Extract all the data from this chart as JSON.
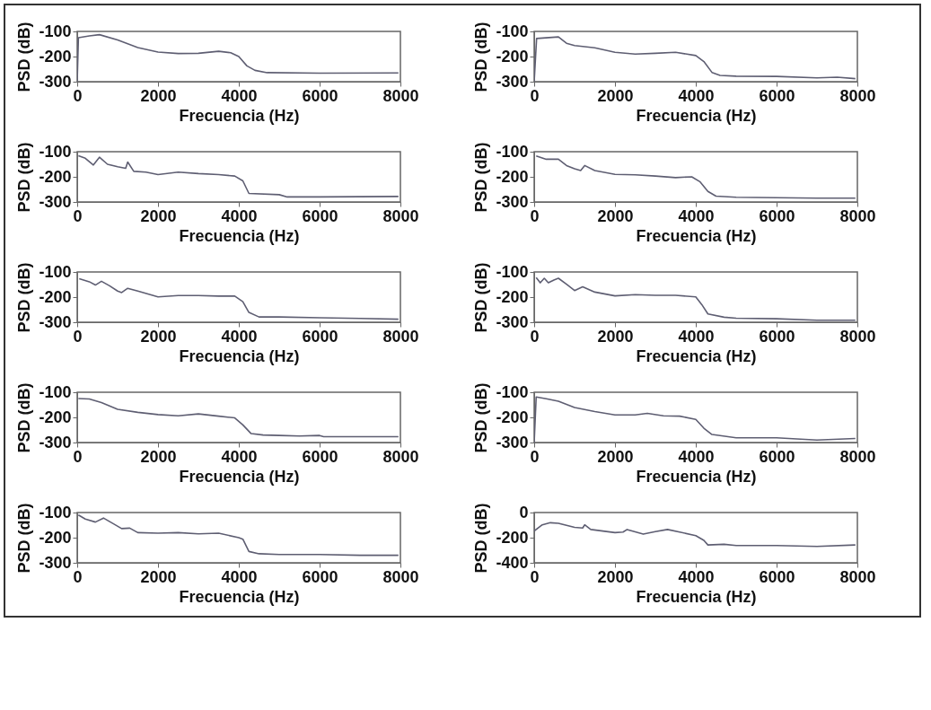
{
  "chart_data": [
    {
      "type": "line",
      "xlabel": "Frecuencia (Hz)",
      "ylabel": "PSD (dB)",
      "xlim": [
        0,
        8000
      ],
      "ylim": [
        -300,
        -100
      ],
      "xticks": [
        0,
        2000,
        4000,
        6000,
        8000
      ],
      "yticks": [
        -300,
        -200,
        -100
      ],
      "x": [
        0,
        30,
        300,
        550,
        1000,
        1500,
        2000,
        2500,
        3000,
        3500,
        3800,
        4000,
        4200,
        4400,
        4700,
        6000,
        7950
      ],
      "series": [
        {
          "color": "#5e5e72",
          "values": [
            -300,
            -125,
            -118,
            -113,
            -134,
            -164,
            -182,
            -188,
            -187,
            -179,
            -185,
            -200,
            -237,
            -255,
            -264,
            -266,
            -265
          ]
        }
      ]
    },
    {
      "type": "line",
      "xlabel": "Frecuencia (Hz)",
      "ylabel": "PSD (dB)",
      "xlim": [
        0,
        8000
      ],
      "ylim": [
        -300,
        -100
      ],
      "xticks": [
        0,
        2000,
        4000,
        6000,
        8000
      ],
      "yticks": [
        -300,
        -200,
        -100
      ],
      "x": [
        0,
        60,
        600,
        800,
        1000,
        1500,
        2000,
        2500,
        3000,
        3500,
        4000,
        4200,
        4400,
        4600,
        5000,
        6000,
        7000,
        7500,
        7950
      ],
      "series": [
        {
          "color": "#5e5e72",
          "values": [
            -300,
            -128,
            -122,
            -147,
            -156,
            -165,
            -183,
            -190,
            -187,
            -183,
            -196,
            -220,
            -263,
            -275,
            -278,
            -279,
            -285,
            -282,
            -288
          ]
        }
      ]
    },
    {
      "type": "line",
      "xlabel": "Frecuencia (Hz)",
      "ylabel": "PSD (dB)",
      "xlim": [
        0,
        8000
      ],
      "ylim": [
        -300,
        -100
      ],
      "xticks": [
        0,
        2000,
        4000,
        6000,
        8000
      ],
      "yticks": [
        -300,
        -200,
        -100
      ],
      "x": [
        30,
        200,
        400,
        550,
        750,
        1000,
        1200,
        1250,
        1400,
        1700,
        2000,
        2500,
        3000,
        3500,
        3900,
        4100,
        4250,
        5000,
        5200,
        6000,
        7950
      ],
      "series": [
        {
          "color": "#5e5e72",
          "values": [
            -116,
            -126,
            -153,
            -122,
            -150,
            -160,
            -166,
            -141,
            -178,
            -181,
            -191,
            -181,
            -187,
            -191,
            -197,
            -216,
            -266,
            -271,
            -280,
            -280,
            -278
          ]
        }
      ]
    },
    {
      "type": "line",
      "xlabel": "Frecuencia (Hz)",
      "ylabel": "PSD (dB)",
      "xlim": [
        0,
        8000
      ],
      "ylim": [
        -300,
        -100
      ],
      "xticks": [
        0,
        2000,
        4000,
        6000,
        8000
      ],
      "yticks": [
        -300,
        -200,
        -100
      ],
      "x": [
        50,
        300,
        600,
        800,
        1000,
        1150,
        1250,
        1500,
        2000,
        2500,
        3000,
        3500,
        3900,
        4100,
        4300,
        4500,
        5000,
        6000,
        7000,
        7950
      ],
      "series": [
        {
          "color": "#5e5e72",
          "values": [
            -117,
            -130,
            -130,
            -155,
            -168,
            -175,
            -155,
            -175,
            -190,
            -192,
            -197,
            -203,
            -200,
            -219,
            -258,
            -277,
            -281,
            -283,
            -285,
            -285
          ]
        }
      ]
    },
    {
      "type": "line",
      "xlabel": "Frecuencia (Hz)",
      "ylabel": "PSD (dB)",
      "xlim": [
        0,
        8000
      ],
      "ylim": [
        -300,
        -100
      ],
      "xticks": [
        0,
        2000,
        4000,
        6000,
        8000
      ],
      "yticks": [
        -300,
        -200,
        -100
      ],
      "x": [
        50,
        300,
        450,
        600,
        800,
        1000,
        1100,
        1250,
        1500,
        2000,
        2500,
        3000,
        3500,
        3900,
        4100,
        4250,
        4500,
        5000,
        6000,
        7000,
        7950
      ],
      "series": [
        {
          "color": "#5e5e72",
          "values": [
            -127,
            -139,
            -152,
            -137,
            -155,
            -176,
            -182,
            -165,
            -176,
            -199,
            -194,
            -194,
            -196,
            -196,
            -218,
            -261,
            -279,
            -279,
            -282,
            -285,
            -288
          ]
        }
      ]
    },
    {
      "type": "line",
      "xlabel": "Frecuencia (Hz)",
      "ylabel": "PSD (dB)",
      "xlim": [
        0,
        8000
      ],
      "ylim": [
        -300,
        -100
      ],
      "xticks": [
        0,
        2000,
        4000,
        6000,
        8000
      ],
      "yticks": [
        -300,
        -200,
        -100
      ],
      "x": [
        50,
        150,
        250,
        350,
        500,
        600,
        800,
        1000,
        1200,
        1500,
        2000,
        2500,
        3000,
        3500,
        4000,
        4150,
        4300,
        4700,
        5000,
        6000,
        7000,
        7950
      ],
      "series": [
        {
          "color": "#5e5e72",
          "values": [
            -122,
            -143,
            -125,
            -143,
            -131,
            -125,
            -149,
            -174,
            -159,
            -180,
            -195,
            -190,
            -193,
            -193,
            -199,
            -230,
            -267,
            -280,
            -284,
            -286,
            -292,
            -292
          ]
        }
      ]
    },
    {
      "type": "line",
      "xlabel": "Frecuencia (Hz)",
      "ylabel": "PSD (dB)",
      "xlim": [
        0,
        8000
      ],
      "ylim": [
        -300,
        -100
      ],
      "xticks": [
        0,
        2000,
        4000,
        6000,
        8000
      ],
      "yticks": [
        -300,
        -200,
        -100
      ],
      "x": [
        30,
        300,
        600,
        1000,
        1500,
        2000,
        2500,
        3000,
        3500,
        3900,
        4100,
        4300,
        4600,
        5000,
        5500,
        6000,
        6100,
        7950
      ],
      "series": [
        {
          "color": "#5e5e72",
          "values": [
            -125,
            -127,
            -141,
            -168,
            -180,
            -189,
            -194,
            -186,
            -195,
            -202,
            -230,
            -264,
            -270,
            -272,
            -274,
            -272,
            -277,
            -277
          ]
        }
      ]
    },
    {
      "type": "line",
      "xlabel": "Frecuencia (Hz)",
      "ylabel": "PSD (dB)",
      "xlim": [
        0,
        8000
      ],
      "ylim": [
        -300,
        -100
      ],
      "xticks": [
        0,
        2000,
        4000,
        6000,
        8000
      ],
      "yticks": [
        -300,
        -200,
        -100
      ],
      "x": [
        0,
        50,
        300,
        600,
        1000,
        1500,
        2000,
        2500,
        2800,
        3200,
        3600,
        4000,
        4200,
        4400,
        5000,
        6000,
        7000,
        7950
      ],
      "series": [
        {
          "color": "#5e5e72",
          "values": [
            -300,
            -119,
            -126,
            -136,
            -161,
            -177,
            -190,
            -190,
            -184,
            -194,
            -195,
            -208,
            -243,
            -268,
            -281,
            -281,
            -290,
            -284
          ]
        }
      ]
    },
    {
      "type": "line",
      "xlabel": "Frecuencia (Hz)",
      "ylabel": "PSD (dB)",
      "xlim": [
        0,
        8000
      ],
      "ylim": [
        -300,
        -100
      ],
      "xticks": [
        0,
        2000,
        4000,
        6000,
        8000
      ],
      "yticks": [
        -300,
        -200,
        -100
      ],
      "x": [
        30,
        200,
        450,
        650,
        900,
        1100,
        1300,
        1500,
        2000,
        2500,
        3000,
        3500,
        4000,
        4100,
        4250,
        4500,
        5000,
        6000,
        7000,
        7950
      ],
      "series": [
        {
          "color": "#5e5e72",
          "values": [
            -110,
            -126,
            -138,
            -122,
            -145,
            -164,
            -162,
            -180,
            -182,
            -180,
            -185,
            -182,
            -200,
            -206,
            -255,
            -264,
            -267,
            -267,
            -270,
            -270
          ]
        }
      ]
    },
    {
      "type": "line",
      "xlabel": "Frecuencia (Hz)",
      "ylabel": "PSD (dB)",
      "xlim": [
        0,
        8000
      ],
      "ylim": [
        -400,
        0
      ],
      "xticks": [
        0,
        2000,
        4000,
        6000,
        8000
      ],
      "yticks": [
        -400,
        -200,
        0
      ],
      "x": [
        0,
        200,
        400,
        600,
        1000,
        1200,
        1250,
        1400,
        2000,
        2200,
        2300,
        2700,
        3000,
        3300,
        3600,
        4000,
        4200,
        4300,
        4700,
        5000,
        6000,
        7000,
        7950
      ],
      "series": [
        {
          "color": "#5e5e72",
          "values": [
            -147,
            -98,
            -81,
            -86,
            -118,
            -123,
            -98,
            -135,
            -160,
            -155,
            -135,
            -172,
            -152,
            -135,
            -155,
            -184,
            -221,
            -258,
            -253,
            -263,
            -263,
            -270,
            -258
          ]
        }
      ]
    }
  ]
}
